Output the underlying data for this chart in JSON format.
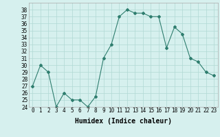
{
  "x": [
    0,
    1,
    2,
    3,
    4,
    5,
    6,
    7,
    8,
    9,
    10,
    11,
    12,
    13,
    14,
    15,
    16,
    17,
    18,
    19,
    20,
    21,
    22,
    23
  ],
  "y": [
    27,
    30,
    29,
    24,
    26,
    25,
    25,
    24,
    25.5,
    31,
    33,
    37,
    38,
    37.5,
    37.5,
    37,
    37,
    32.5,
    35.5,
    34.5,
    31,
    30.5,
    29,
    28.5
  ],
  "line_color": "#2e7d6e",
  "marker": "D",
  "marker_size": 2,
  "bg_color": "#d6f0ee",
  "grid_color": "#b0d8d4",
  "xlabel": "Humidex (Indice chaleur)",
  "ylim": [
    24,
    39
  ],
  "xlim": [
    -0.5,
    23.5
  ],
  "yticks": [
    24,
    25,
    26,
    27,
    28,
    29,
    30,
    31,
    32,
    33,
    34,
    35,
    36,
    37,
    38
  ],
  "xticks": [
    0,
    1,
    2,
    3,
    4,
    5,
    6,
    7,
    8,
    9,
    10,
    11,
    12,
    13,
    14,
    15,
    16,
    17,
    18,
    19,
    20,
    21,
    22,
    23
  ],
  "tick_fontsize": 5.5,
  "xlabel_fontsize": 7
}
